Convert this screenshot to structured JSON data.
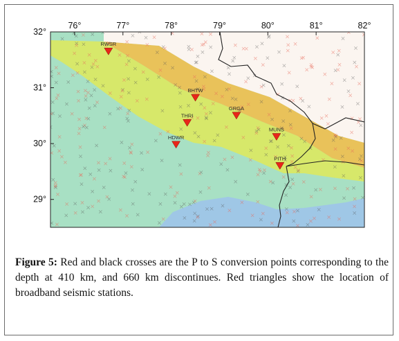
{
  "map": {
    "lon_ticks": [
      "76°",
      "77°",
      "78°",
      "79°",
      "80°",
      "81°",
      "82°"
    ],
    "lat_ticks": [
      "32°",
      "31°",
      "30°",
      "29°"
    ],
    "stations": [
      {
        "code": "RWSR",
        "lon": 76.7,
        "lat": 31.65
      },
      {
        "code": "BHTW",
        "lon": 78.5,
        "lat": 30.82
      },
      {
        "code": "GRGA",
        "lon": 79.35,
        "lat": 30.5
      },
      {
        "code": "THRI",
        "lon": 78.33,
        "lat": 30.37
      },
      {
        "code": "MUNS",
        "lon": 80.18,
        "lat": 30.12
      },
      {
        "code": "HDWR",
        "lon": 78.1,
        "lat": 29.98
      },
      {
        "code": "PITH",
        "lon": 80.25,
        "lat": 29.6
      }
    ],
    "colors": {
      "plains": "#a8e0c4",
      "foothills": "#d7e86a",
      "midlands": "#e9c25a",
      "high_himalaya": "#ffffff",
      "basin": "#9fc7e6",
      "station_marker": "#e8261a",
      "border": "#222222"
    }
  },
  "caption": {
    "label": "Figure 5:",
    "text": " Red and black crosses are the P to S conversion points corresponding to the depth at 410 km, and 660 km discontinues. Red triangles show the location of broadband seismic stations."
  }
}
